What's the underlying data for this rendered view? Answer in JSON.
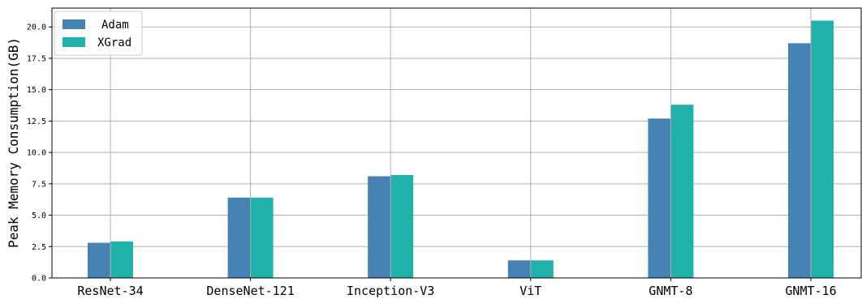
{
  "chart_data": {
    "type": "bar",
    "title": "",
    "xlabel": "",
    "ylabel": "Peak Memory Consumption(GB)",
    "categories": [
      "ResNet-34",
      "DenseNet-121",
      "Inception-V3",
      "ViT",
      "GNMT-8",
      "GNMT-16"
    ],
    "series": [
      {
        "name": "Adam",
        "color": "#4682b4",
        "values": [
          2.8,
          6.4,
          8.1,
          1.4,
          12.7,
          18.7
        ]
      },
      {
        "name": "XGrad",
        "color": "#20b2aa",
        "values": [
          2.9,
          6.4,
          8.2,
          1.4,
          13.8,
          20.5
        ]
      }
    ],
    "ylim": [
      0,
      21.5
    ],
    "yticks": [
      "0.0",
      "2.5",
      "5.0",
      "7.5",
      "10.0",
      "12.5",
      "15.0",
      "17.5",
      "20.0"
    ],
    "grid": true,
    "legend_position": "top-left"
  }
}
